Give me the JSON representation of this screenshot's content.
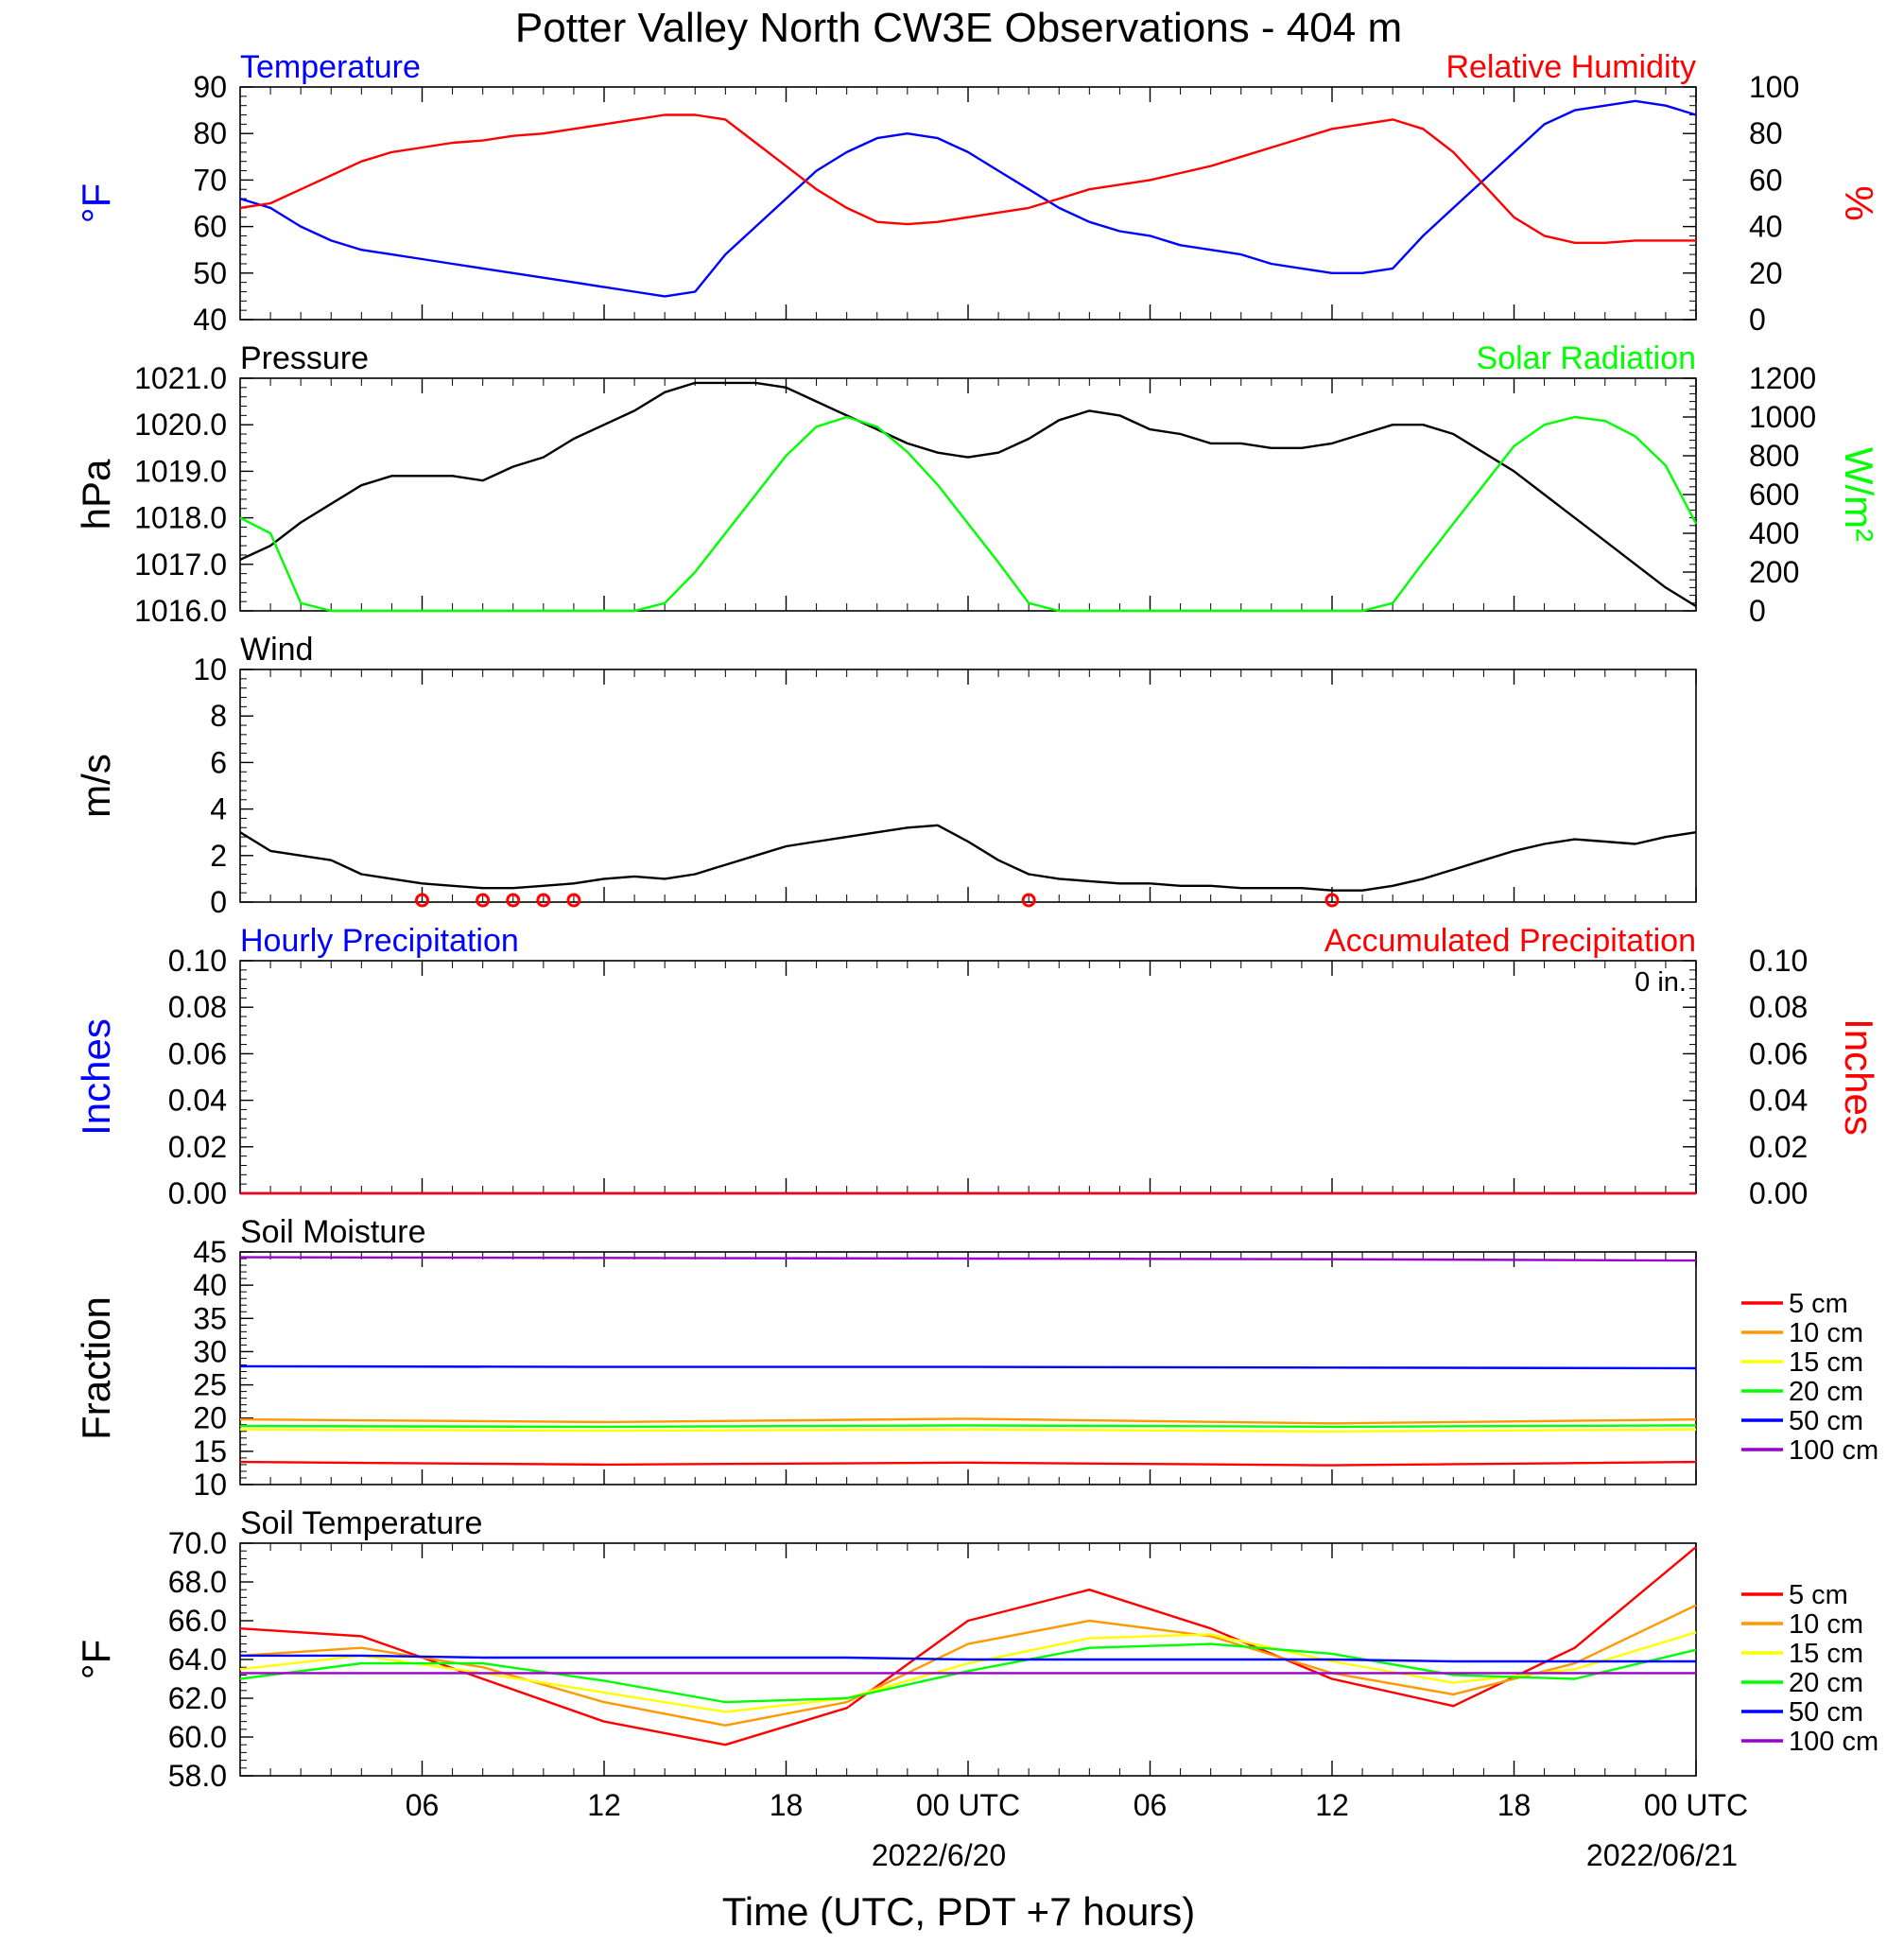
{
  "title": "Potter Valley North CW3E Observations - 404 m",
  "xlabel": "Time (UTC, PDT +7 hours)",
  "x_ticks": [
    "06",
    "12",
    "18",
    "00 UTC",
    "06",
    "12",
    "18",
    "00 UTC"
  ],
  "x_dates": [
    "2022/6/20",
    "2022/06/21"
  ],
  "colors": {
    "temperature": "#0000ff",
    "humidity": "#ff0000",
    "pressure": "#000000",
    "solar": "#00ff00",
    "wind": "#000000",
    "wind_barb": "#ff0000"
  },
  "chart_data": [
    {
      "type": "line",
      "name": "temperature-humidity",
      "left_title": "Temperature",
      "right_title": "Relative Humidity",
      "ylabel_left": "°F",
      "ylabel_right": "%",
      "ylim_left": [
        40,
        90
      ],
      "yticks_left": [
        "90",
        "80",
        "70",
        "60",
        "50",
        "40"
      ],
      "ylim_right": [
        0,
        100
      ],
      "yticks_right": [
        "100",
        "80",
        "60",
        "40",
        "20",
        "0"
      ],
      "x_hours": [
        1,
        2,
        3,
        4,
        5,
        6,
        7,
        8,
        9,
        10,
        11,
        12,
        13,
        14,
        15,
        16,
        17,
        18,
        19,
        20,
        21,
        22,
        23,
        24,
        25,
        26,
        27,
        28,
        29,
        30,
        31,
        32,
        33,
        34,
        35,
        36,
        37,
        38,
        39,
        40,
        41,
        42,
        43,
        44,
        45,
        46,
        47,
        48,
        49
      ],
      "series": [
        {
          "name": "Temperature",
          "axis": "left",
          "values": [
            66,
            64,
            60,
            57,
            55,
            54,
            53,
            52,
            51,
            50,
            49,
            48,
            47,
            46,
            45,
            46,
            54,
            60,
            66,
            72,
            76,
            79,
            80,
            79,
            76,
            72,
            68,
            64,
            61,
            59,
            58,
            56,
            55,
            54,
            52,
            51,
            50,
            50,
            51,
            58,
            64,
            70,
            76,
            82,
            85,
            86,
            87,
            86,
            84
          ]
        },
        {
          "name": "Relative Humidity",
          "axis": "right",
          "values": [
            48,
            50,
            56,
            62,
            68,
            72,
            74,
            76,
            77,
            79,
            80,
            82,
            84,
            86,
            88,
            88,
            86,
            76,
            66,
            56,
            48,
            42,
            41,
            42,
            44,
            46,
            48,
            52,
            56,
            58,
            60,
            63,
            66,
            70,
            74,
            78,
            82,
            84,
            86,
            82,
            72,
            58,
            44,
            36,
            33,
            33,
            34,
            34,
            34
          ]
        }
      ]
    },
    {
      "type": "line",
      "name": "pressure-solar",
      "left_title": "Pressure",
      "right_title": "Solar Radiation",
      "ylabel_left": "hPa",
      "ylabel_right": "W/m²",
      "ylim_left": [
        1016,
        1021
      ],
      "yticks_left": [
        "1021.0",
        "1020.0",
        "1019.0",
        "1018.0",
        "1017.0",
        "1016.0"
      ],
      "ylim_right": [
        0,
        1200
      ],
      "yticks_right": [
        "1200",
        "1000",
        "800",
        "600",
        "400",
        "200",
        "0"
      ],
      "x_hours": [
        1,
        2,
        3,
        4,
        5,
        6,
        7,
        8,
        9,
        10,
        11,
        12,
        13,
        14,
        15,
        16,
        17,
        18,
        19,
        20,
        21,
        22,
        23,
        24,
        25,
        26,
        27,
        28,
        29,
        30,
        31,
        32,
        33,
        34,
        35,
        36,
        37,
        38,
        39,
        40,
        41,
        42,
        43,
        44,
        45,
        46,
        47,
        48,
        49
      ],
      "series": [
        {
          "name": "Pressure",
          "axis": "left",
          "values": [
            1017.1,
            1017.4,
            1017.9,
            1018.3,
            1018.7,
            1018.9,
            1018.9,
            1018.9,
            1018.8,
            1019.1,
            1019.3,
            1019.7,
            1020.0,
            1020.3,
            1020.7,
            1020.9,
            1020.9,
            1020.9,
            1020.8,
            1020.5,
            1020.2,
            1019.9,
            1019.6,
            1019.4,
            1019.3,
            1019.4,
            1019.7,
            1020.1,
            1020.3,
            1020.2,
            1019.9,
            1019.8,
            1019.6,
            1019.6,
            1019.5,
            1019.5,
            1019.6,
            1019.8,
            1020.0,
            1020.0,
            1019.8,
            1019.4,
            1019.0,
            1018.5,
            1018.0,
            1017.5,
            1017.0,
            1016.5,
            1016.1
          ]
        },
        {
          "name": "Solar Radiation",
          "axis": "right",
          "values": [
            480,
            400,
            40,
            0,
            0,
            0,
            0,
            0,
            0,
            0,
            0,
            0,
            0,
            0,
            40,
            200,
            400,
            600,
            800,
            950,
            1000,
            950,
            820,
            650,
            450,
            250,
            40,
            0,
            0,
            0,
            0,
            0,
            0,
            0,
            0,
            0,
            0,
            0,
            40,
            250,
            450,
            650,
            850,
            960,
            1000,
            980,
            900,
            750,
            450
          ]
        }
      ]
    },
    {
      "type": "line",
      "name": "wind",
      "left_title": "Wind",
      "ylabel_left": "m/s",
      "ylim_left": [
        0,
        10
      ],
      "yticks_left": [
        "10",
        "8",
        "6",
        "4",
        "2",
        "0"
      ],
      "x_hours": [
        1,
        2,
        3,
        4,
        5,
        6,
        7,
        8,
        9,
        10,
        11,
        12,
        13,
        14,
        15,
        16,
        17,
        18,
        19,
        20,
        21,
        22,
        23,
        24,
        25,
        26,
        27,
        28,
        29,
        30,
        31,
        32,
        33,
        34,
        35,
        36,
        37,
        38,
        39,
        40,
        41,
        42,
        43,
        44,
        45,
        46,
        47,
        48,
        49
      ],
      "series": [
        {
          "name": "Wind",
          "axis": "left",
          "values": [
            3.0,
            2.2,
            2.0,
            1.8,
            1.2,
            1.0,
            0.8,
            0.7,
            0.6,
            0.6,
            0.7,
            0.8,
            1.0,
            1.1,
            1.0,
            1.2,
            1.6,
            2.0,
            2.4,
            2.6,
            2.8,
            3.0,
            3.2,
            3.3,
            2.6,
            1.8,
            1.2,
            1.0,
            0.9,
            0.8,
            0.8,
            0.7,
            0.7,
            0.6,
            0.6,
            0.6,
            0.5,
            0.5,
            0.7,
            1.0,
            1.4,
            1.8,
            2.2,
            2.5,
            2.7,
            2.6,
            2.5,
            2.8,
            3.0
          ]
        }
      ],
      "calm_markers_hours": [
        7,
        9,
        10,
        11,
        12,
        27,
        37
      ]
    },
    {
      "type": "line",
      "name": "precipitation",
      "left_title": "Hourly Precipitation",
      "right_title": "Accumulated Precipitation",
      "annotation": "0 in.",
      "ylabel_left": "Inches",
      "ylabel_right": "Inches",
      "ylim_left": [
        0,
        0.1
      ],
      "yticks_left": [
        "0.10",
        "0.08",
        "0.06",
        "0.04",
        "0.02",
        "0.00"
      ],
      "ylim_right": [
        0,
        0.1
      ],
      "yticks_right": [
        "0.10",
        "0.08",
        "0.06",
        "0.04",
        "0.02",
        "0.00"
      ],
      "x_hours": [
        1,
        49
      ],
      "series": [
        {
          "name": "Hourly Precipitation",
          "axis": "left",
          "values": [
            0,
            0
          ]
        },
        {
          "name": "Accumulated Precipitation",
          "axis": "right",
          "values": [
            0,
            0
          ]
        }
      ]
    },
    {
      "type": "line",
      "name": "soil-moisture",
      "left_title": "Soil Moisture",
      "ylabel_left": "Fraction",
      "ylim_left": [
        10,
        45
      ],
      "yticks_left": [
        "45",
        "40",
        "35",
        "30",
        "25",
        "20",
        "15",
        "10"
      ],
      "x_hours": [
        1,
        13,
        25,
        37,
        49
      ],
      "series": [
        {
          "name": "5 cm",
          "values": [
            13.4,
            13.0,
            13.3,
            12.9,
            13.4
          ]
        },
        {
          "name": "10 cm",
          "values": [
            19.8,
            19.4,
            19.9,
            19.2,
            19.8
          ]
        },
        {
          "name": "15 cm",
          "values": [
            18.3,
            18.1,
            18.3,
            18.0,
            18.3
          ]
        },
        {
          "name": "20 cm",
          "values": [
            18.8,
            18.7,
            18.9,
            18.7,
            18.9
          ]
        },
        {
          "name": "50 cm",
          "values": [
            27.8,
            27.7,
            27.7,
            27.6,
            27.5
          ]
        },
        {
          "name": "100 cm",
          "values": [
            44.2,
            44.1,
            44.0,
            43.9,
            43.7
          ]
        }
      ]
    },
    {
      "type": "line",
      "name": "soil-temperature",
      "left_title": "Soil Temperature",
      "ylabel_left": "°F",
      "ylim_left": [
        58,
        70
      ],
      "yticks_left": [
        "70.0",
        "68.0",
        "66.0",
        "64.0",
        "62.0",
        "60.0",
        "58.0"
      ],
      "x_hours": [
        1,
        5,
        9,
        13,
        17,
        21,
        25,
        29,
        33,
        37,
        41,
        45,
        49
      ],
      "series": [
        {
          "name": "5 cm",
          "values": [
            65.6,
            65.2,
            63.0,
            60.8,
            59.6,
            61.5,
            66.0,
            67.6,
            65.6,
            63.0,
            61.6,
            64.6,
            69.8
          ]
        },
        {
          "name": "10 cm",
          "values": [
            64.2,
            64.6,
            63.6,
            61.8,
            60.6,
            61.8,
            64.8,
            66.0,
            65.2,
            63.3,
            62.2,
            63.8,
            66.8
          ]
        },
        {
          "name": "15 cm",
          "values": [
            63.5,
            64.2,
            63.3,
            62.3,
            61.3,
            62.0,
            63.8,
            65.1,
            65.3,
            63.9,
            62.8,
            63.5,
            65.4
          ]
        },
        {
          "name": "20 cm",
          "values": [
            63.0,
            63.8,
            63.8,
            62.9,
            61.8,
            62.0,
            63.4,
            64.6,
            64.8,
            64.3,
            63.2,
            63.0,
            64.5
          ]
        },
        {
          "name": "50 cm",
          "values": [
            64.2,
            64.2,
            64.1,
            64.1,
            64.1,
            64.1,
            64.0,
            64.0,
            64.0,
            64.0,
            63.9,
            63.9,
            63.9
          ]
        },
        {
          "name": "100 cm",
          "values": [
            63.3,
            63.3,
            63.3,
            63.3,
            63.3,
            63.3,
            63.3,
            63.3,
            63.3,
            63.3,
            63.3,
            63.3,
            63.3
          ]
        }
      ]
    }
  ],
  "soil_legend": [
    {
      "label": "5 cm",
      "color": "#ff0000"
    },
    {
      "label": "10 cm",
      "color": "#ff9900"
    },
    {
      "label": "15 cm",
      "color": "#ffff00"
    },
    {
      "label": "20 cm",
      "color": "#00ff00"
    },
    {
      "label": "50 cm",
      "color": "#0000ff"
    },
    {
      "label": "100 cm",
      "color": "#9900cc"
    }
  ]
}
